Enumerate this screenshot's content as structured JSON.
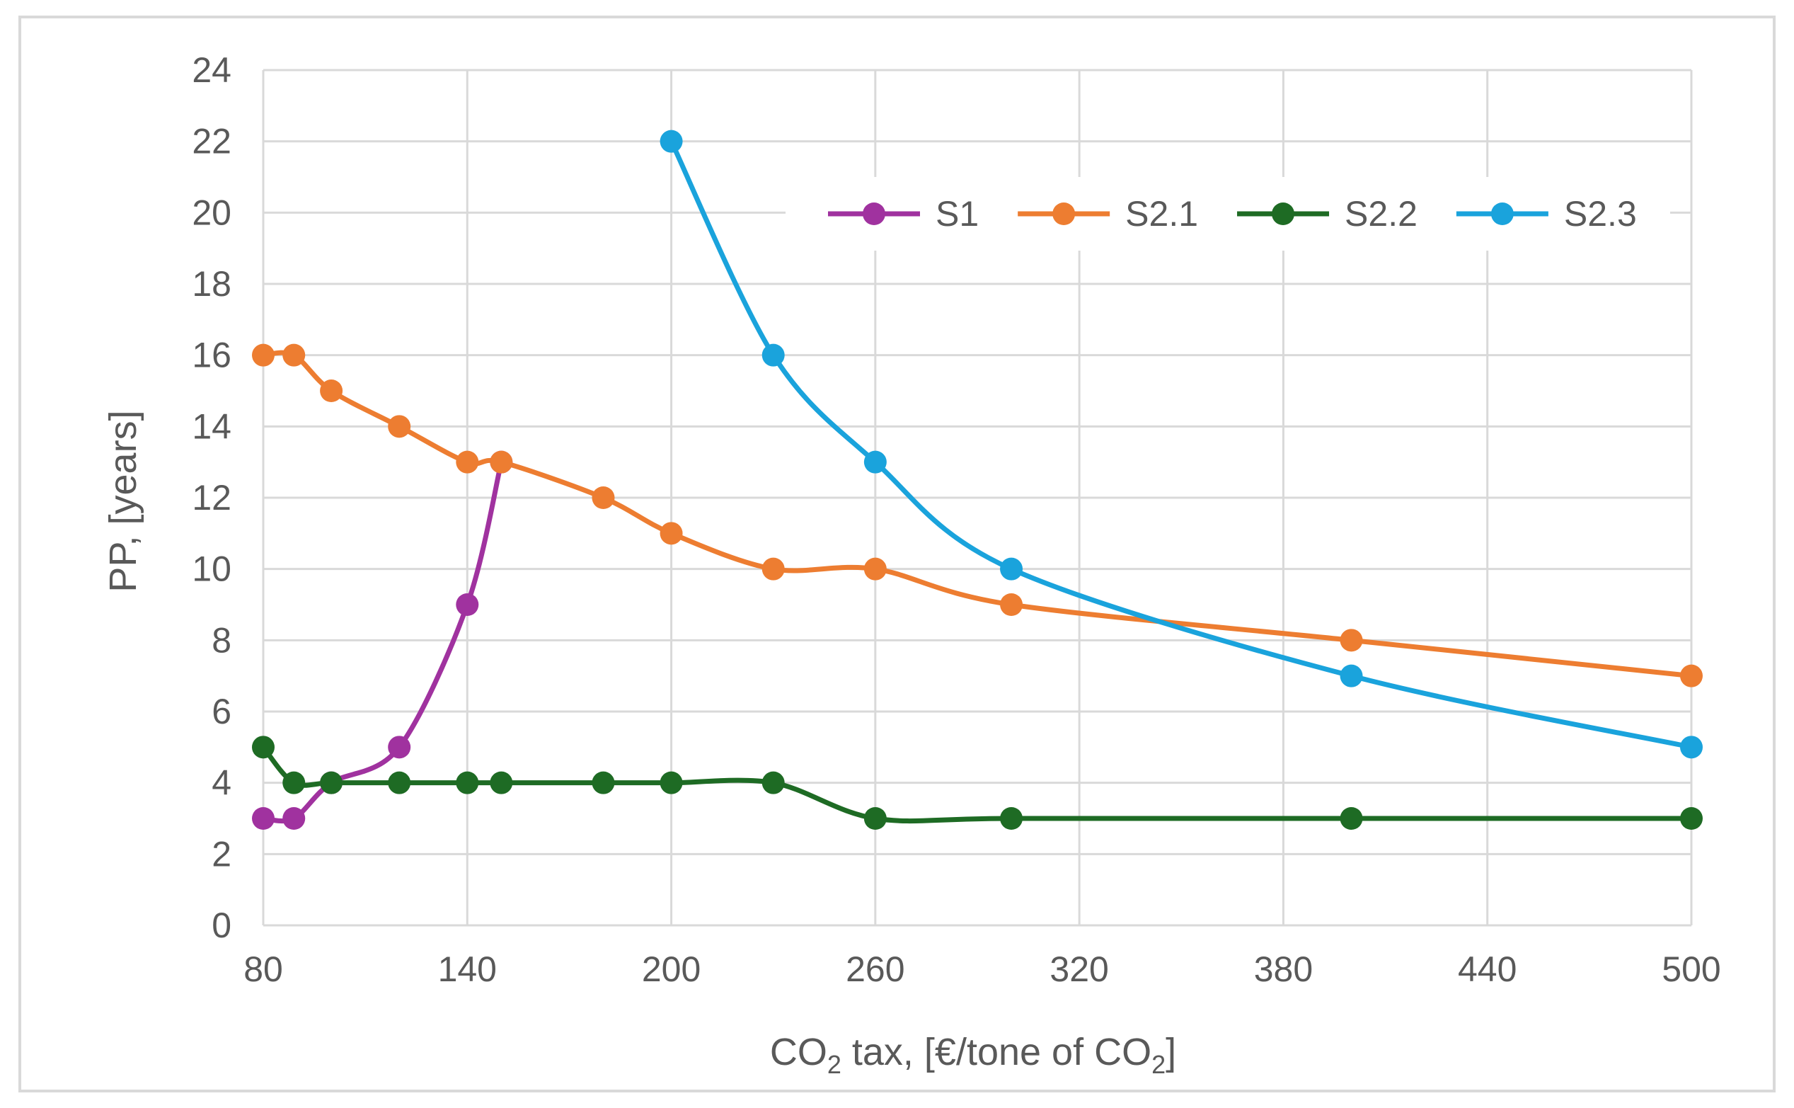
{
  "chart_data": {
    "type": "line",
    "title": "",
    "xlabel": "CO2 tax, [€/tone of CO2]",
    "xlabel_parts": {
      "part1": "CO",
      "sub1": "2",
      "part2": " tax, [€/tone of CO",
      "sub2": "2",
      "part3": "]"
    },
    "ylabel": "PP, [years]",
    "xlim": [
      80,
      500
    ],
    "ylim": [
      0,
      24
    ],
    "x_ticks": [
      80,
      140,
      200,
      260,
      320,
      380,
      440,
      500
    ],
    "y_ticks": [
      0,
      2,
      4,
      6,
      8,
      10,
      12,
      14,
      16,
      18,
      20,
      22,
      24
    ],
    "grid": true,
    "smooth": true,
    "legend_position": "top-right",
    "series": [
      {
        "name": "S1",
        "color": "#a0329f",
        "points": [
          [
            80,
            3
          ],
          [
            89,
            3
          ],
          [
            100,
            4
          ],
          [
            120,
            5
          ],
          [
            140,
            9
          ],
          [
            150,
            13
          ]
        ]
      },
      {
        "name": "S2.1",
        "color": "#ed7d31",
        "points": [
          [
            80,
            16
          ],
          [
            89,
            16
          ],
          [
            100,
            15
          ],
          [
            120,
            14
          ],
          [
            140,
            13
          ],
          [
            150,
            13
          ],
          [
            180,
            12
          ],
          [
            200,
            11
          ],
          [
            230,
            10
          ],
          [
            260,
            10
          ],
          [
            300,
            9
          ],
          [
            400,
            8
          ],
          [
            500,
            7
          ]
        ]
      },
      {
        "name": "S2.2",
        "color": "#1e6b24",
        "points": [
          [
            80,
            5
          ],
          [
            89,
            4
          ],
          [
            100,
            4
          ],
          [
            120,
            4
          ],
          [
            140,
            4
          ],
          [
            150,
            4
          ],
          [
            180,
            4
          ],
          [
            200,
            4
          ],
          [
            230,
            4
          ],
          [
            260,
            3
          ],
          [
            300,
            3
          ],
          [
            400,
            3
          ],
          [
            500,
            3
          ]
        ]
      },
      {
        "name": "S2.3",
        "color": "#1aa3dc",
        "points": [
          [
            200,
            22
          ],
          [
            230,
            16
          ],
          [
            260,
            13
          ],
          [
            300,
            10
          ],
          [
            400,
            7
          ],
          [
            500,
            5
          ]
        ]
      }
    ]
  }
}
